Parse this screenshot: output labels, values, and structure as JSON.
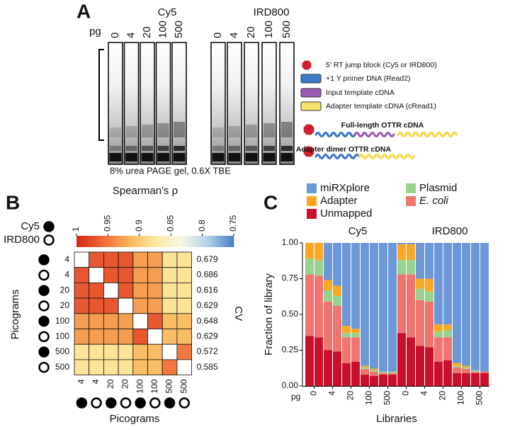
{
  "panel_a": {
    "label": "A",
    "dyes": [
      "Cy5",
      "IRD800"
    ],
    "amount_unit": "pg",
    "lanes": [
      "0",
      "4",
      "20",
      "100",
      "500"
    ],
    "legend": [
      "5′ RT jump block (Cy5 or IRD800)",
      "+1 Y primer DNA (Read2)",
      "Input template cDNA",
      "Adapter template cDNA (cRead1)"
    ],
    "constructs": [
      "Full-length OTTR cDNA",
      "Adapter dimer OTTR cDNA"
    ],
    "caption": "8% urea PAGE gel, 0.6X TBE"
  },
  "chart_data": [
    {
      "type": "heatmap",
      "panel_label": "B",
      "colorbar_title": "Spearman's ρ",
      "clim": [
        1,
        0.75
      ],
      "cticks": [
        1,
        0.95,
        0.9,
        0.85,
        0.8,
        0.75
      ],
      "colorscale": [
        "#d62718",
        "#ef6a3a",
        "#f8b55a",
        "#fde9a0",
        "#f6f7e4",
        "#b7d3ea",
        "#4a7fc6"
      ],
      "marker_legend": [
        "Cy5",
        "IRD800"
      ],
      "sample_labels": [
        "4",
        "4",
        "20",
        "20",
        "100",
        "100",
        "500",
        "500"
      ],
      "sample_dyes": [
        "Cy5",
        "IRD800",
        "Cy5",
        "IRD800",
        "Cy5",
        "IRD800",
        "Cy5",
        "IRD800"
      ],
      "values": [
        [
          null,
          0.97,
          0.97,
          0.97,
          0.93,
          0.93,
          0.88,
          0.88
        ],
        [
          0.97,
          null,
          0.97,
          0.97,
          0.93,
          0.93,
          0.88,
          0.88
        ],
        [
          0.97,
          0.97,
          null,
          0.97,
          0.93,
          0.93,
          0.88,
          0.88
        ],
        [
          0.97,
          0.97,
          0.97,
          null,
          0.93,
          0.93,
          0.88,
          0.88
        ],
        [
          0.93,
          0.93,
          0.93,
          0.93,
          null,
          0.97,
          0.91,
          0.91
        ],
        [
          0.93,
          0.93,
          0.93,
          0.93,
          0.97,
          null,
          0.91,
          0.91
        ],
        [
          0.88,
          0.88,
          0.88,
          0.88,
          0.91,
          0.91,
          null,
          0.95
        ],
        [
          0.88,
          0.88,
          0.88,
          0.88,
          0.91,
          0.91,
          0.95,
          null
        ]
      ],
      "side_title": "CV",
      "side_values": [
        0.679,
        0.686,
        0.616,
        0.629,
        0.648,
        0.629,
        0.572,
        0.585
      ],
      "xlabel": "Picograms",
      "ylabel": "Picograms"
    },
    {
      "type": "stacked_bar",
      "panel_label": "C",
      "xlabel": "Libraries",
      "ylabel": "Fraction of library",
      "x_unit": "pg",
      "group_labels": [
        "Cy5",
        "IRD800"
      ],
      "categories": [
        "0",
        null,
        "4",
        null,
        "20",
        null,
        "100",
        null,
        "500",
        null,
        "0",
        null,
        "4",
        null,
        "20",
        null,
        "100",
        null,
        "500",
        null
      ],
      "ylim": [
        0,
        1
      ],
      "yticks": [
        {
          "value": 0,
          "label": "0.00"
        },
        {
          "value": 0.25,
          "label": "0.25"
        },
        {
          "value": 0.5,
          "label": "0.50"
        },
        {
          "value": 0.75,
          "label": "0.75"
        },
        {
          "value": 1,
          "label": "1.00"
        }
      ],
      "series": [
        {
          "name": "Unmapped",
          "color": "#c8102e",
          "values": [
            0.35,
            0.34,
            0.25,
            0.24,
            0.16,
            0.17,
            0.08,
            0.07,
            0.08,
            0.08,
            0.37,
            0.34,
            0.28,
            0.27,
            0.17,
            0.18,
            0.09,
            0.09,
            0.09,
            0.09
          ]
        },
        {
          "name": "E. coli",
          "color": "#f07470",
          "values": [
            0.43,
            0.43,
            0.34,
            0.32,
            0.18,
            0.17,
            0.04,
            0.03,
            0.01,
            0.01,
            0.41,
            0.44,
            0.32,
            0.32,
            0.17,
            0.16,
            0.04,
            0.03,
            0.01,
            0.01
          ]
        },
        {
          "name": "Plasmid",
          "color": "#97d38d",
          "values": [
            0.11,
            0.11,
            0.08,
            0.07,
            0.03,
            0.03,
            0.01,
            0.01,
            0.01,
            0.01,
            0.1,
            0.1,
            0.08,
            0.07,
            0.04,
            0.05,
            0.01,
            0.01,
            0.01,
            0
          ]
        },
        {
          "name": "Adapter",
          "color": "#f9a825",
          "values": [
            0.11,
            0.12,
            0.07,
            0.07,
            0.05,
            0.03,
            0.01,
            0.01,
            0,
            0,
            0.11,
            0.11,
            0.07,
            0.09,
            0.05,
            0.04,
            0.02,
            0.01,
            0,
            0
          ]
        },
        {
          "name": "miRXplore",
          "color": "#6d98d8",
          "values": [
            0,
            0,
            0.26,
            0.3,
            0.58,
            0.6,
            0.86,
            0.88,
            0.9,
            0.9,
            0.01,
            0.01,
            0.25,
            0.25,
            0.57,
            0.57,
            0.84,
            0.86,
            0.89,
            0.9
          ]
        }
      ]
    }
  ]
}
